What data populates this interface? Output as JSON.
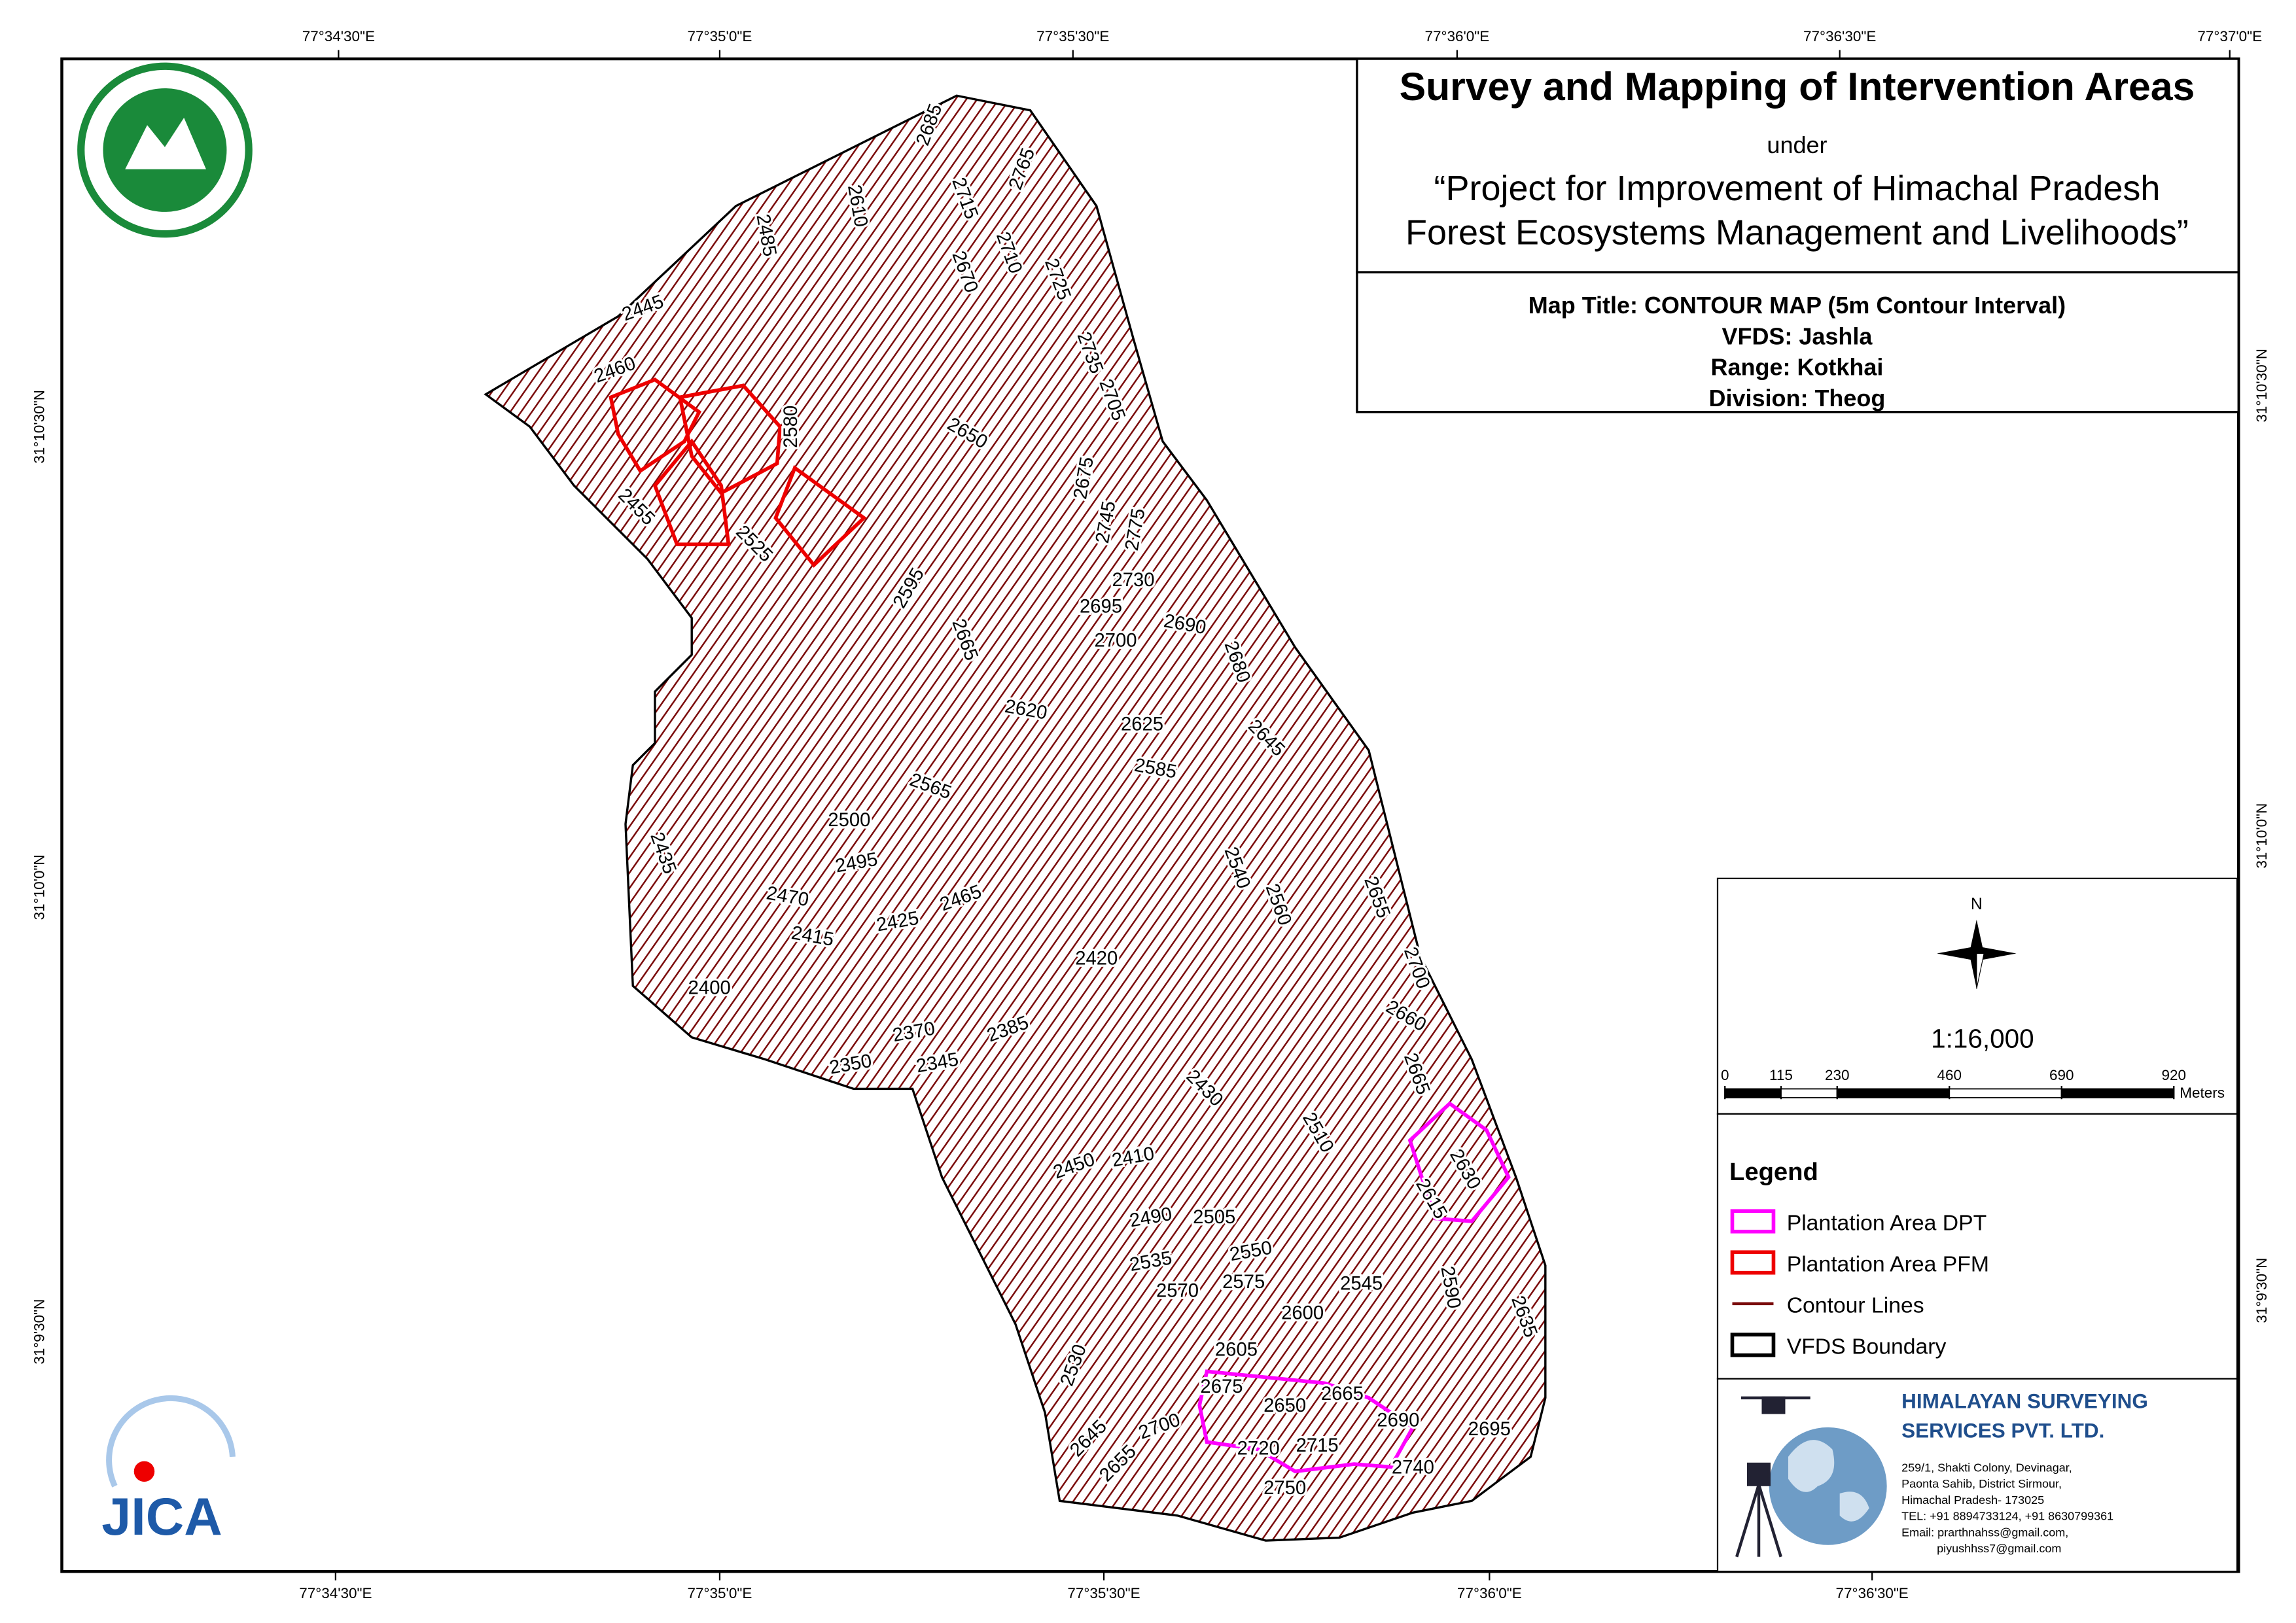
{
  "header": {
    "title": "Survey and Mapping of Intervention Areas",
    "under": "under",
    "project_line1": "“Project for Improvement of Himachal Pradesh",
    "project_line2": "Forest Ecosystems Management and Livelihoods”"
  },
  "map_info": {
    "map_title": "Map Title: CONTOUR MAP (5m Contour Interval)",
    "vfds": "VFDS: Jashla",
    "range": "Range: Kotkhai",
    "division": "Division: Theog"
  },
  "graticule": {
    "top": [
      "77°34'30\"E",
      "77°35'0\"E",
      "77°35'30\"E",
      "77°36'0\"E",
      "77°36'30\"E",
      "77°37'0\"E"
    ],
    "bottom": [
      "77°34'30\"E",
      "77°35'0\"E",
      "77°35'30\"E",
      "77°36'0\"E",
      "77°36'30\"E"
    ],
    "left": [
      "31°10'30\"N",
      "31°10'0\"N",
      "31°9'30\"N"
    ],
    "right": [
      "31°10'30\"N",
      "31°10'0\"N",
      "31°9'30\"N"
    ]
  },
  "contour_labels": [
    2685,
    2765,
    2610,
    2715,
    2710,
    2485,
    2670,
    2725,
    2445,
    2735,
    2460,
    2705,
    2580,
    2650,
    2675,
    2455,
    2745,
    2775,
    2525,
    2730,
    2595,
    2695,
    2690,
    2665,
    2700,
    2680,
    2620,
    2625,
    2645,
    2585,
    2565,
    2500,
    2435,
    2540,
    2560,
    2495,
    2655,
    2470,
    2465,
    2425,
    2415,
    2700,
    2420,
    2400,
    2660,
    2370,
    2385,
    2350,
    2345,
    2665,
    2430,
    2630,
    2510,
    2410,
    2450,
    2615,
    2490,
    2505,
    2550,
    2535,
    2590,
    2545,
    2570,
    2575,
    2635,
    2600,
    2530,
    2605,
    2675,
    2665,
    2650,
    2690,
    2695,
    2645,
    2700,
    2655,
    2720,
    2715,
    2740,
    2750
  ],
  "north": "N",
  "scale": "1:16,000",
  "scale_bar": {
    "ticks": [
      0,
      115,
      230,
      460,
      690,
      920
    ],
    "unit": "Meters"
  },
  "legend": {
    "title": "Legend",
    "items": [
      "Plantation Area DPT",
      "Plantation Area PFM",
      "Contour Lines",
      "VFDS Boundary"
    ]
  },
  "company": {
    "name_line1": "HIMALAYAN SURVEYING",
    "name_line2": "SERVICES PVT. LTD.",
    "address": [
      "259/1, Shakti Colony, Devinagar,",
      "Paonta Sahib, District Sirmour,",
      "Himachal Pradesh- 173025",
      "TEL: +91 8894733124, +91 8630799361",
      "Email: prarthnahss@gmail.com,",
      "piyushhss7@gmail.com"
    ]
  },
  "logos": {
    "jica": "JICA"
  }
}
